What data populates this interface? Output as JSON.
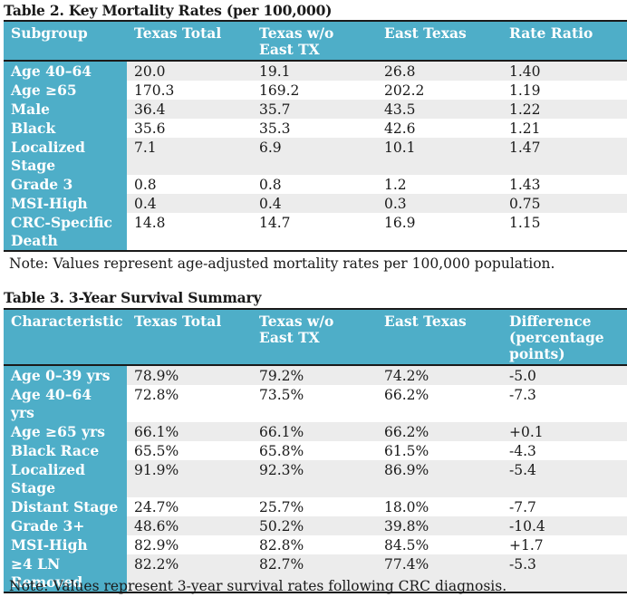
{
  "table2": {
    "title": "Table 2. Key Mortality Rates (per 100,000)",
    "headers": [
      "Subgroup",
      "Texas Total",
      "Texas w/o East TX",
      "East Texas",
      "Rate Ratio"
    ],
    "rows": [
      [
        "Age 40–64",
        "20.0",
        "19.1",
        "26.8",
        "1.40"
      ],
      [
        "Age ≥65",
        "170.3",
        "169.2",
        "202.2",
        "1.19"
      ],
      [
        "Male",
        "36.4",
        "35.7",
        "43.5",
        "1.22"
      ],
      [
        "Black",
        "35.6",
        "35.3",
        "42.6",
        "1.21"
      ],
      [
        "Localized Stage",
        "7.1",
        "6.9",
        "10.1",
        "1.47"
      ],
      [
        "Grade 3",
        "0.8",
        "0.8",
        "1.2",
        "1.43"
      ],
      [
        "MSI-High",
        "0.4",
        "0.4",
        "0.3",
        "0.75"
      ],
      [
        "CRC-Specific Death",
        "14.8",
        "14.7",
        "16.9",
        "1.15"
      ]
    ],
    "note": "Note: Values represent age-adjusted mortality rates per 100,000 population."
  },
  "table3": {
    "title": "Table 3. 3-Year Survival Summary",
    "headers": [
      "Characteristic",
      "Texas Total",
      "Texas w/o East TX",
      "East Texas",
      "Difference (percentage points)"
    ],
    "rows": [
      [
        "Age 0–39 yrs",
        "78.9%",
        "79.2%",
        "74.2%",
        "-5.0"
      ],
      [
        "Age 40–64 yrs",
        "72.8%",
        "73.5%",
        "66.2%",
        "-7.3"
      ],
      [
        "Age ≥65 yrs",
        "66.1%",
        "66.1%",
        "66.2%",
        "+0.1"
      ],
      [
        "Black Race",
        "65.5%",
        "65.8%",
        "61.5%",
        "-4.3"
      ],
      [
        "Localized Stage",
        "91.9%",
        "92.3%",
        "86.9%",
        "-5.4"
      ],
      [
        "Distant Stage",
        "24.7%",
        "25.7%",
        "18.0%",
        "-7.7"
      ],
      [
        "Grade 3+",
        "48.6%",
        "50.2%",
        "39.8%",
        "-10.4"
      ],
      [
        "MSI-High",
        "82.9%",
        "82.8%",
        "84.5%",
        "+1.7"
      ],
      [
        "≥4 LN Removed",
        "82.2%",
        "82.7%",
        "77.4%",
        "-5.3"
      ]
    ],
    "note": "Note: Values represent 3-year survival rates following CRC diagnosis."
  }
}
